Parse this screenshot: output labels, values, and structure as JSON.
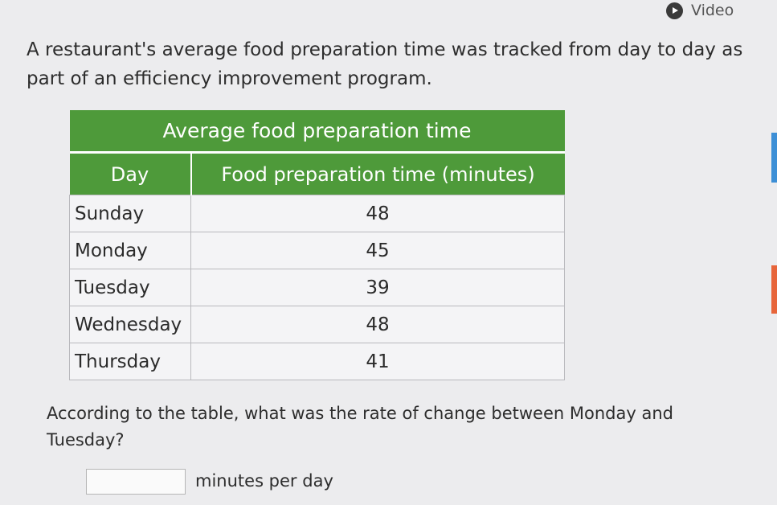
{
  "header": {
    "video_label": "Video",
    "video_icon": "play-icon"
  },
  "problem": {
    "intro": "A restaurant's average food preparation time was tracked from day to day as part of an efficiency improvement program."
  },
  "table": {
    "title": "Average food preparation time",
    "columns": [
      "Day",
      "Food preparation time (minutes)"
    ],
    "rows": [
      {
        "day": "Sunday",
        "time": "48"
      },
      {
        "day": "Monday",
        "time": "45"
      },
      {
        "day": "Tuesday",
        "time": "39"
      },
      {
        "day": "Wednesday",
        "time": "48"
      },
      {
        "day": "Thursday",
        "time": "41"
      }
    ]
  },
  "question": {
    "text": "According to the table, what was the rate of change between Monday and Tuesday?",
    "answer_value": "",
    "answer_unit": "minutes per day"
  },
  "colors": {
    "table_header": "#4e9a3a",
    "side_tab_blue": "#3d8fd6",
    "side_tab_orange": "#e7653a"
  }
}
